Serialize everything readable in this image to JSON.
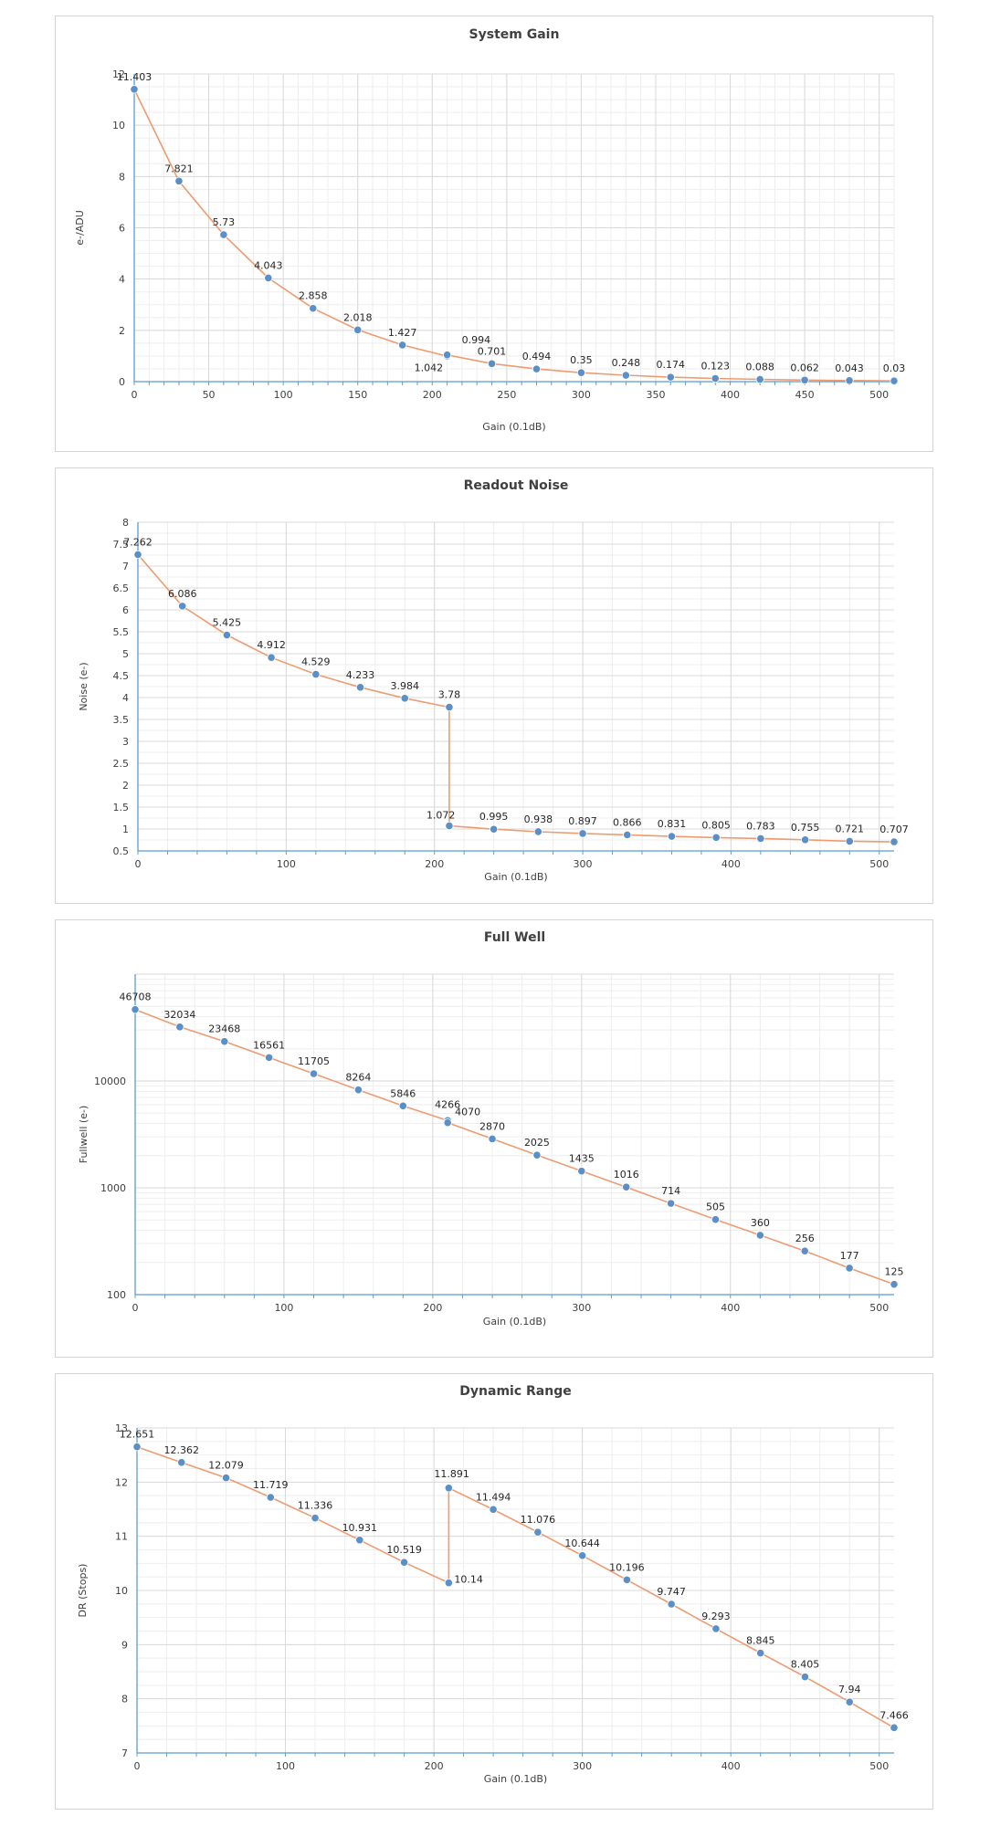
{
  "colors": {
    "line": "#ed9b6f",
    "marker": "#5b8fc7",
    "axis": "#5b9bd5",
    "grid_major": "#d9d9d9",
    "grid_minor": "#eeeeee"
  },
  "chart_data": [
    {
      "type": "line",
      "title": "System Gain",
      "xlabel": "Gain (0.1dB)",
      "ylabel": "e-/ADU",
      "xlim": [
        0,
        510
      ],
      "ylim": [
        0,
        12
      ],
      "yscale": "linear",
      "x_ticks": [
        "0",
        "50",
        "100",
        "150",
        "200",
        "250",
        "300",
        "350",
        "400",
        "450",
        "500"
      ],
      "y_ticks": [
        "0",
        "2",
        "4",
        "6",
        "8",
        "10",
        "12"
      ],
      "grid": true,
      "series": [
        {
          "x": [
            0,
            30,
            60,
            90,
            120,
            150,
            180,
            210,
            210,
            240,
            270,
            300,
            330,
            360,
            390,
            420,
            450,
            480,
            510
          ],
          "y": [
            11.403,
            7.821,
            5.73,
            4.043,
            2.858,
            2.018,
            1.427,
            0.994,
            1.042,
            0.701,
            0.494,
            0.35,
            0.248,
            0.174,
            0.123,
            0.088,
            0.062,
            0.043,
            0.03
          ],
          "labels": [
            "11.403",
            "7.821",
            "5.73",
            "4.043",
            "2.858",
            "2.018",
            "1.427",
            "0.994",
            "1.042",
            "0.701",
            "0.494",
            "0.35",
            "0.248",
            "0.174",
            "0.123",
            "0.088",
            "0.062",
            "0.043",
            "0.03"
          ]
        }
      ]
    },
    {
      "type": "line",
      "title": "Readout Noise",
      "xlabel": "Gain (0.1dB)",
      "ylabel": "Noise (e-)",
      "xlim": [
        0,
        510
      ],
      "ylim": [
        0.5,
        8
      ],
      "yscale": "linear",
      "x_ticks": [
        "0",
        "100",
        "200",
        "300",
        "400",
        "500"
      ],
      "y_ticks": [
        "0.5",
        "1",
        "1.5",
        "2",
        "2.5",
        "3",
        "3.5",
        "4",
        "4.5",
        "5",
        "5.5",
        "6",
        "6.5",
        "7",
        "7.5",
        "8"
      ],
      "grid": true,
      "series": [
        {
          "x": [
            0,
            30,
            60,
            90,
            120,
            150,
            180,
            210,
            210,
            240,
            270,
            300,
            330,
            360,
            390,
            420,
            450,
            480,
            510
          ],
          "y": [
            7.262,
            6.086,
            5.425,
            4.912,
            4.529,
            4.233,
            3.984,
            3.78,
            1.072,
            0.995,
            0.938,
            0.897,
            0.866,
            0.831,
            0.805,
            0.783,
            0.755,
            0.721,
            0.707
          ],
          "labels": [
            "7.262",
            "6.086",
            "5.425",
            "4.912",
            "4.529",
            "4.233",
            "3.984",
            "3.78",
            "1.072",
            "0.995",
            "0.938",
            "0.897",
            "0.866",
            "0.831",
            "0.805",
            "0.783",
            "0.755",
            "0.721",
            "0.707"
          ]
        }
      ]
    },
    {
      "type": "line",
      "title": "Full Well",
      "xlabel": "Gain (0.1dB)",
      "ylabel": "Fullwell (e-)",
      "xlim": [
        0,
        510
      ],
      "ylim": [
        100,
        100000
      ],
      "yscale": "log",
      "x_ticks": [
        "0",
        "100",
        "200",
        "300",
        "400",
        "500"
      ],
      "y_ticks": [
        "100",
        "1000",
        "10000"
      ],
      "grid": true,
      "series": [
        {
          "x": [
            0,
            30,
            60,
            90,
            120,
            150,
            180,
            210,
            210,
            240,
            270,
            300,
            330,
            360,
            390,
            420,
            450,
            480,
            510
          ],
          "y": [
            46708,
            32034,
            23468,
            16561,
            11705,
            8264,
            5846,
            4266,
            4070,
            2870,
            2025,
            1435,
            1016,
            714,
            505,
            360,
            256,
            177,
            125
          ],
          "labels": [
            "46708",
            "32034",
            "23468",
            "16561",
            "11705",
            "8264",
            "5846",
            "4266",
            "4070",
            "2870",
            "2025",
            "1435",
            "1016",
            "714",
            "505",
            "360",
            "256",
            "177",
            "125"
          ]
        }
      ]
    },
    {
      "type": "line",
      "title": "Dynamic Range",
      "xlabel": "Gain (0.1dB)",
      "ylabel": "DR (Stops)",
      "xlim": [
        0,
        510
      ],
      "ylim": [
        7,
        13
      ],
      "yscale": "linear",
      "x_ticks": [
        "0",
        "100",
        "200",
        "300",
        "400",
        "500"
      ],
      "y_ticks": [
        "7",
        "8",
        "9",
        "10",
        "11",
        "12",
        "13"
      ],
      "grid": true,
      "series": [
        {
          "x": [
            0,
            30,
            60,
            90,
            120,
            150,
            180,
            210,
            210,
            240,
            270,
            300,
            330,
            360,
            390,
            420,
            450,
            480,
            510
          ],
          "y": [
            12.651,
            12.362,
            12.079,
            11.719,
            11.336,
            10.931,
            10.519,
            10.14,
            11.891,
            11.494,
            11.076,
            10.644,
            10.196,
            9.747,
            9.293,
            8.845,
            8.405,
            7.94,
            7.466
          ],
          "labels": [
            "12.651",
            "12.362",
            "12.079",
            "11.719",
            "11.336",
            "10.931",
            "10.519",
            "10.14",
            "11.891",
            "11.494",
            "11.076",
            "10.644",
            "10.196",
            "9.747",
            "9.293",
            "8.845",
            "8.405",
            "7.94",
            "7.466"
          ]
        }
      ]
    }
  ]
}
